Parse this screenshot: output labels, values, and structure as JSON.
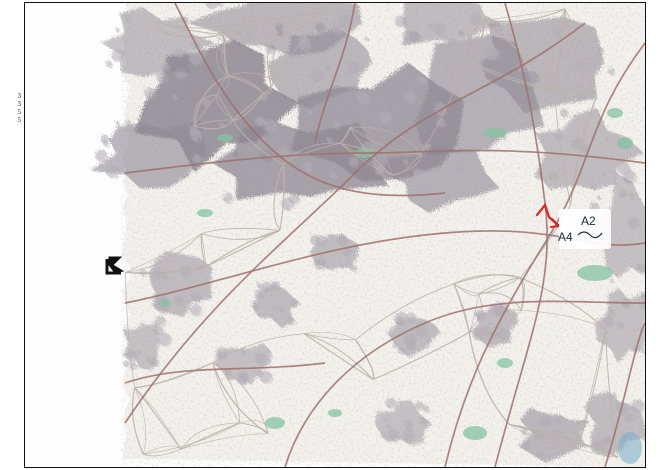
{
  "margin_notes": [
    "3",
    "3",
    "5",
    "5"
  ],
  "map": {
    "annotations": {
      "label_a2": "A2",
      "label_a4": "A4",
      "red_mark": "red-arrow-icon",
      "black_mark": "black-arrow-icon"
    },
    "colors": {
      "paper": "#f3f1ec",
      "urban": "#8d8792",
      "urban_light": "#b3aeb6",
      "road": "#a0706c",
      "minor_road": "#bcb3ad",
      "green": "#86c1a4",
      "water": "#7fb0cc",
      "red_annotation": "#e0201a",
      "black_annotation": "#111111"
    }
  }
}
